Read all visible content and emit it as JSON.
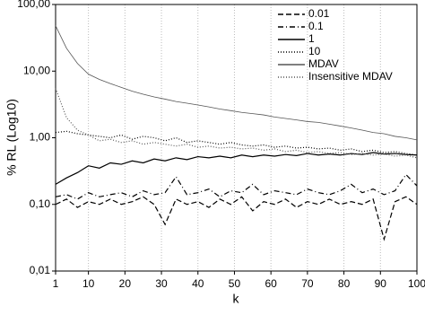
{
  "chart_data": {
    "type": "line",
    "ylabel": "% RL (Log10)",
    "xlabel": "k",
    "ylog": true,
    "grid_x": true,
    "legend": "upper right",
    "xlim": [
      1,
      100
    ],
    "xticks": [
      1,
      10,
      20,
      30,
      40,
      50,
      60,
      70,
      80,
      90,
      100
    ],
    "ylim": [
      0.01,
      100
    ],
    "yticks": [
      {
        "value": 0.01,
        "label": "0,01"
      },
      {
        "value": 0.1,
        "label": "0,10"
      },
      {
        "value": 1,
        "label": "1,00"
      },
      {
        "value": 10,
        "label": "10,00"
      },
      {
        "value": 100,
        "label": "100,00"
      }
    ],
    "x": [
      1,
      4,
      7,
      10,
      13,
      16,
      19,
      22,
      25,
      28,
      31,
      34,
      37,
      40,
      43,
      46,
      49,
      52,
      55,
      58,
      61,
      64,
      67,
      70,
      73,
      76,
      79,
      82,
      85,
      88,
      91,
      94,
      97,
      100
    ],
    "series": [
      {
        "name": "0.01",
        "color": "#000000",
        "linestyle": "dashed",
        "values": [
          0.1,
          0.12,
          0.09,
          0.11,
          0.1,
          0.12,
          0.1,
          0.11,
          0.13,
          0.1,
          0.05,
          0.12,
          0.1,
          0.11,
          0.09,
          0.12,
          0.1,
          0.13,
          0.08,
          0.11,
          0.1,
          0.12,
          0.09,
          0.11,
          0.1,
          0.12,
          0.1,
          0.11,
          0.1,
          0.12,
          0.03,
          0.11,
          0.13,
          0.1
        ]
      },
      {
        "name": "0.1",
        "color": "#000000",
        "linestyle": "dashdot",
        "values": [
          0.13,
          0.14,
          0.12,
          0.15,
          0.13,
          0.14,
          0.15,
          0.13,
          0.16,
          0.14,
          0.15,
          0.26,
          0.14,
          0.15,
          0.17,
          0.13,
          0.16,
          0.15,
          0.2,
          0.14,
          0.16,
          0.15,
          0.14,
          0.17,
          0.15,
          0.14,
          0.16,
          0.2,
          0.15,
          0.17,
          0.14,
          0.16,
          0.28,
          0.19
        ]
      },
      {
        "name": "1",
        "color": "#000000",
        "linestyle": "solid",
        "values": [
          0.2,
          0.25,
          0.3,
          0.38,
          0.35,
          0.42,
          0.4,
          0.45,
          0.42,
          0.48,
          0.45,
          0.5,
          0.47,
          0.52,
          0.5,
          0.53,
          0.5,
          0.55,
          0.52,
          0.55,
          0.53,
          0.56,
          0.54,
          0.58,
          0.55,
          0.57,
          0.55,
          0.58,
          0.56,
          0.6,
          0.57,
          0.58,
          0.56,
          0.55
        ]
      },
      {
        "name": "10",
        "color": "#000000",
        "linestyle": "dotted",
        "values": [
          1.2,
          1.25,
          1.15,
          1.1,
          1.05,
          1.0,
          1.1,
          0.95,
          1.05,
          1.0,
          0.9,
          1.0,
          0.85,
          0.9,
          0.85,
          0.8,
          0.85,
          0.78,
          0.75,
          0.78,
          0.72,
          0.75,
          0.7,
          0.72,
          0.68,
          0.7,
          0.65,
          0.68,
          0.62,
          0.65,
          0.6,
          0.62,
          0.58,
          0.55
        ]
      },
      {
        "name": "MDAV",
        "color": "#555555",
        "linestyle": "solid",
        "values": [
          48,
          22,
          13,
          9,
          7.5,
          6.5,
          5.7,
          5,
          4.5,
          4.1,
          3.8,
          3.5,
          3.3,
          3.1,
          2.9,
          2.7,
          2.55,
          2.4,
          2.3,
          2.2,
          2.05,
          1.95,
          1.85,
          1.75,
          1.7,
          1.6,
          1.5,
          1.4,
          1.3,
          1.2,
          1.15,
          1.05,
          1.0,
          0.93
        ]
      },
      {
        "name": "Insensitive MDAV",
        "color": "#555555",
        "linestyle": "dotted",
        "values": [
          5.5,
          2.0,
          1.3,
          1.1,
          0.9,
          0.95,
          0.85,
          0.9,
          0.8,
          0.85,
          0.8,
          0.75,
          0.8,
          0.72,
          0.75,
          0.7,
          0.72,
          0.68,
          0.7,
          0.65,
          0.68,
          0.62,
          0.65,
          0.6,
          0.62,
          0.58,
          0.6,
          0.56,
          0.58,
          0.55,
          0.57,
          0.53,
          0.55,
          0.5
        ]
      }
    ]
  }
}
